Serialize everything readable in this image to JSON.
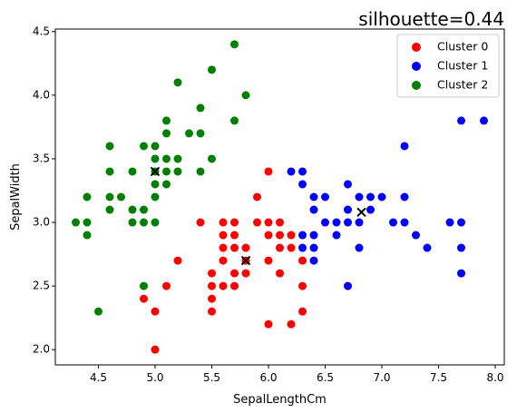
{
  "chart_data": {
    "type": "scatter",
    "title": "silhouette=0.44",
    "xlabel": "SepalLengthCm",
    "ylabel": "SepalWidth",
    "xlim": [
      4.12,
      8.08
    ],
    "ylim": [
      1.88,
      4.52
    ],
    "xticks": [
      "4.5",
      "5.0",
      "5.5",
      "6.0",
      "6.5",
      "7.0",
      "7.5",
      "8.0"
    ],
    "yticks": [
      "2.0",
      "2.5",
      "3.0",
      "3.5",
      "4.0",
      "4.5"
    ],
    "legend_position": "top-right",
    "series": [
      {
        "name": "Cluster 0",
        "color": "#ff0000",
        "points": [
          [
            5.0,
            2.0
          ],
          [
            5.0,
            2.3
          ],
          [
            4.9,
            2.4
          ],
          [
            5.1,
            2.5
          ],
          [
            5.2,
            2.7
          ],
          [
            5.4,
            3.0
          ],
          [
            5.5,
            2.3
          ],
          [
            5.5,
            2.4
          ],
          [
            5.5,
            2.5
          ],
          [
            5.5,
            2.6
          ],
          [
            5.6,
            2.5
          ],
          [
            5.6,
            2.7
          ],
          [
            5.6,
            2.8
          ],
          [
            5.6,
            2.9
          ],
          [
            5.6,
            3.0
          ],
          [
            5.7,
            2.5
          ],
          [
            5.7,
            2.6
          ],
          [
            5.7,
            2.8
          ],
          [
            5.7,
            2.9
          ],
          [
            5.7,
            3.0
          ],
          [
            5.8,
            2.6
          ],
          [
            5.8,
            2.7
          ],
          [
            5.8,
            2.8
          ],
          [
            5.9,
            3.0
          ],
          [
            5.9,
            3.2
          ],
          [
            6.0,
            2.2
          ],
          [
            6.0,
            2.7
          ],
          [
            6.0,
            2.9
          ],
          [
            6.0,
            3.0
          ],
          [
            6.0,
            3.4
          ],
          [
            6.1,
            2.6
          ],
          [
            6.1,
            2.8
          ],
          [
            6.1,
            2.9
          ],
          [
            6.1,
            3.0
          ],
          [
            6.2,
            2.2
          ],
          [
            6.2,
            2.8
          ],
          [
            6.2,
            2.9
          ],
          [
            6.3,
            2.3
          ],
          [
            6.3,
            2.5
          ],
          [
            6.3,
            2.7
          ]
        ]
      },
      {
        "name": "Cluster 1",
        "color": "#0000ff",
        "points": [
          [
            6.2,
            3.4
          ],
          [
            6.3,
            2.8
          ],
          [
            6.3,
            2.9
          ],
          [
            6.3,
            3.3
          ],
          [
            6.3,
            3.4
          ],
          [
            6.4,
            2.7
          ],
          [
            6.4,
            2.8
          ],
          [
            6.4,
            2.9
          ],
          [
            6.4,
            3.1
          ],
          [
            6.4,
            3.2
          ],
          [
            6.5,
            3.0
          ],
          [
            6.5,
            3.2
          ],
          [
            6.6,
            3.0
          ],
          [
            6.6,
            2.9
          ],
          [
            6.7,
            2.5
          ],
          [
            6.7,
            3.0
          ],
          [
            6.7,
            3.1
          ],
          [
            6.7,
            3.3
          ],
          [
            6.8,
            2.8
          ],
          [
            6.8,
            3.0
          ],
          [
            6.8,
            3.2
          ],
          [
            6.9,
            3.1
          ],
          [
            6.9,
            3.2
          ],
          [
            7.0,
            3.2
          ],
          [
            7.1,
            3.0
          ],
          [
            7.2,
            3.0
          ],
          [
            7.2,
            3.2
          ],
          [
            7.2,
            3.6
          ],
          [
            7.3,
            2.9
          ],
          [
            7.4,
            2.8
          ],
          [
            7.6,
            3.0
          ],
          [
            7.7,
            2.6
          ],
          [
            7.7,
            2.8
          ],
          [
            7.7,
            3.0
          ],
          [
            7.7,
            3.8
          ],
          [
            7.9,
            3.8
          ]
        ]
      },
      {
        "name": "Cluster 2",
        "color": "#008000",
        "points": [
          [
            4.3,
            3.0
          ],
          [
            4.4,
            2.9
          ],
          [
            4.4,
            3.0
          ],
          [
            4.4,
            3.2
          ],
          [
            4.5,
            2.3
          ],
          [
            4.6,
            3.1
          ],
          [
            4.6,
            3.2
          ],
          [
            4.6,
            3.4
          ],
          [
            4.6,
            3.6
          ],
          [
            4.7,
            3.2
          ],
          [
            4.8,
            3.0
          ],
          [
            4.8,
            3.1
          ],
          [
            4.8,
            3.4
          ],
          [
            4.9,
            2.5
          ],
          [
            4.9,
            3.0
          ],
          [
            4.9,
            3.1
          ],
          [
            4.9,
            3.6
          ],
          [
            5.0,
            3.0
          ],
          [
            5.0,
            3.2
          ],
          [
            5.0,
            3.3
          ],
          [
            5.0,
            3.4
          ],
          [
            5.0,
            3.5
          ],
          [
            5.0,
            3.6
          ],
          [
            5.1,
            3.3
          ],
          [
            5.1,
            3.4
          ],
          [
            5.1,
            3.5
          ],
          [
            5.1,
            3.7
          ],
          [
            5.1,
            3.8
          ],
          [
            5.2,
            3.4
          ],
          [
            5.2,
            3.5
          ],
          [
            5.2,
            4.1
          ],
          [
            5.3,
            3.7
          ],
          [
            5.4,
            3.4
          ],
          [
            5.4,
            3.7
          ],
          [
            5.4,
            3.9
          ],
          [
            5.5,
            3.5
          ],
          [
            5.5,
            4.2
          ],
          [
            5.7,
            3.8
          ],
          [
            5.7,
            4.4
          ],
          [
            5.8,
            4.0
          ]
        ]
      }
    ],
    "centroids": [
      [
        5.0,
        3.4
      ],
      [
        5.8,
        2.7
      ],
      [
        6.82,
        3.08
      ]
    ],
    "centroid_color": "#000000"
  }
}
